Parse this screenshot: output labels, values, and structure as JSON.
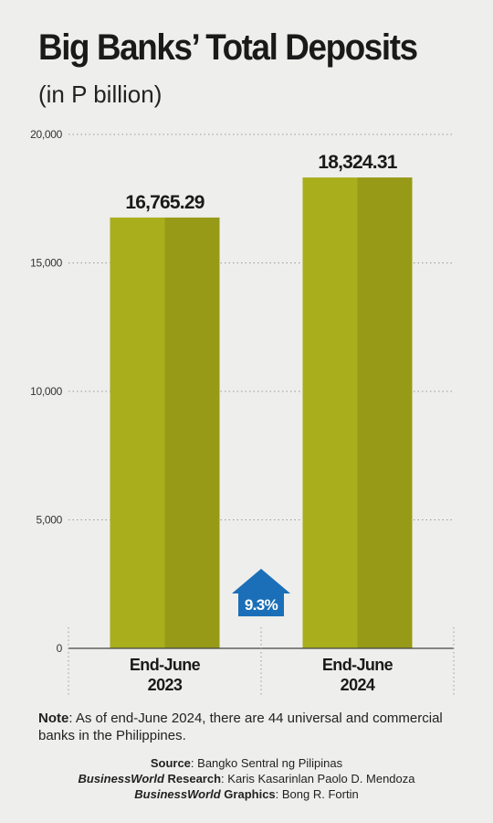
{
  "header": {
    "title": "Big Banks’ Total Deposits",
    "subtitle": "(in P billion)"
  },
  "chart_data": {
    "type": "bar",
    "categories": [
      [
        "End-June",
        "2023"
      ],
      [
        "End-June",
        "2024"
      ]
    ],
    "values": [
      16765.29,
      18324.31
    ],
    "value_labels": [
      "16,765.29",
      "18,324.31"
    ],
    "ylim": [
      0,
      20000
    ],
    "yticks": [
      0,
      5000,
      10000,
      15000,
      20000
    ],
    "ytick_labels": [
      "0",
      "5,000",
      "10,000",
      "15,000",
      "20,000"
    ],
    "grid": true,
    "change_badge": "9.3%"
  },
  "colors": {
    "background": "#eeeeec",
    "bar_light": "#a9ae1c",
    "bar_dark": "#969a17",
    "badge": "#1a6fb8",
    "badge_text": "#ffffff"
  },
  "note": {
    "label": "Note",
    "text": ": As of end-June 2024, there are 44 universal and commercial banks in the Philippines."
  },
  "credits": {
    "source_label": "Source",
    "source_text": ": Bangko Sentral ng Pilipinas",
    "research_label_italic": "BusinessWorld",
    "research_label": " Research",
    "research_text": ": Karis Kasarinlan Paolo D. Mendoza",
    "graphics_label_italic": "BusinessWorld",
    "graphics_label": " Graphics",
    "graphics_text": ": Bong R. Fortin"
  }
}
